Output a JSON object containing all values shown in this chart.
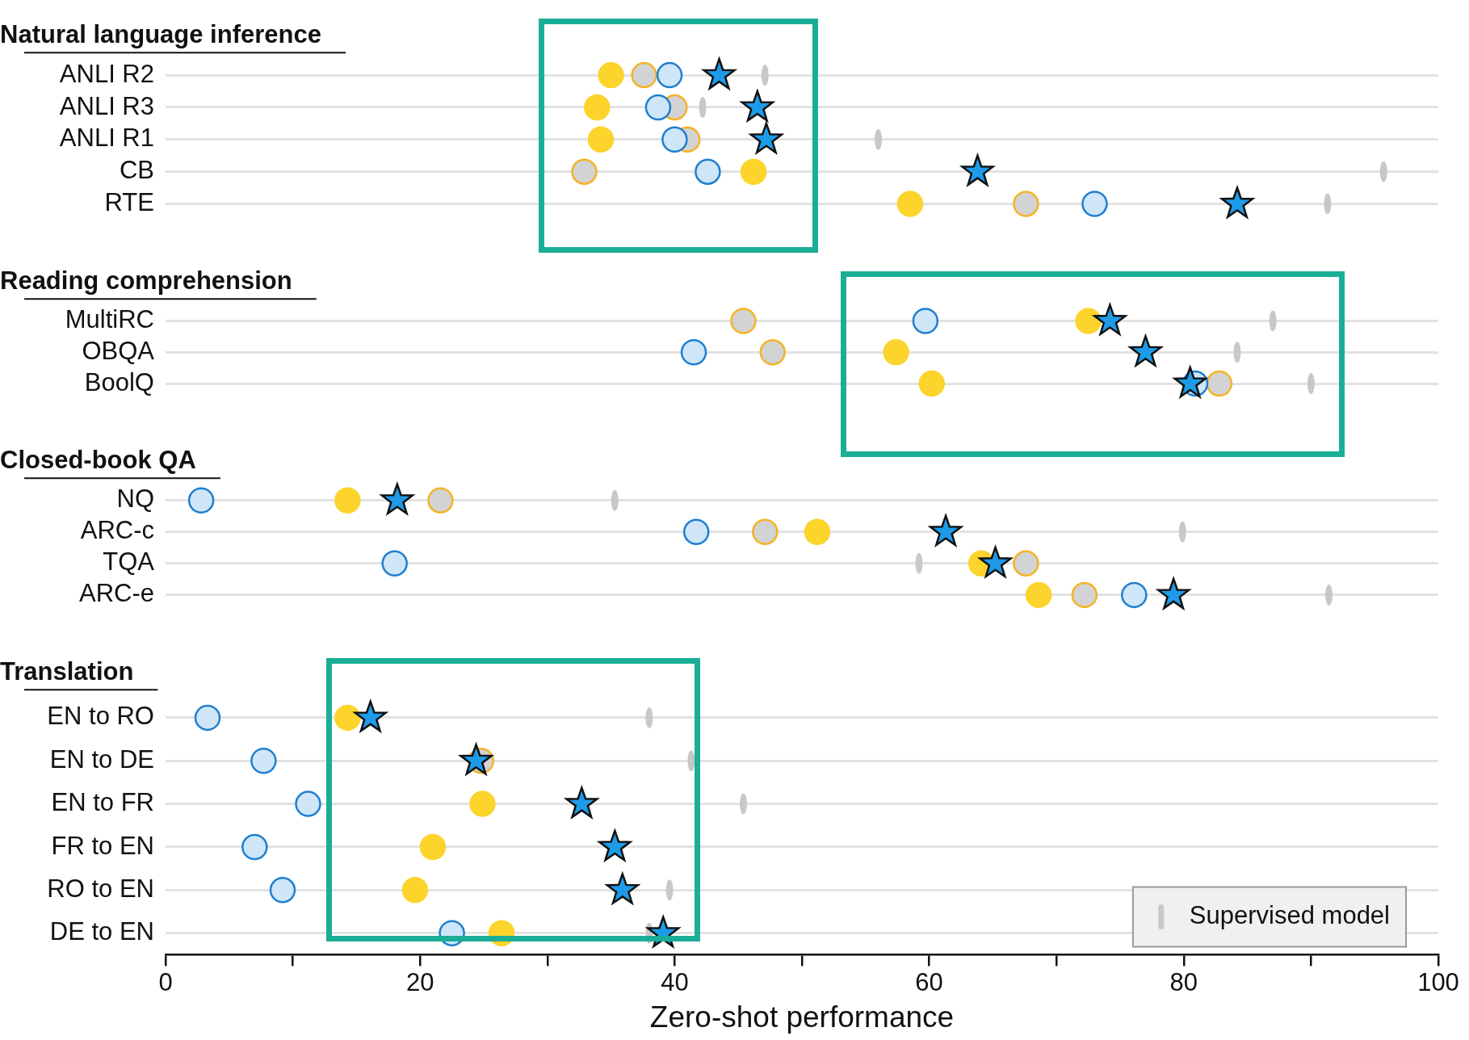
{
  "chart_data": [
    {
      "type": "scatter",
      "title": "Natural language inference",
      "orientation": "horizontal",
      "categories": [
        "ANLI R2",
        "ANLI R3",
        "ANLI R1",
        "CB",
        "RTE"
      ],
      "xlim": [
        0,
        100
      ],
      "tick_labels": "y",
      "grid": "y",
      "series": [
        {
          "color": "#1e9be8",
          "marker": "star",
          "values": [
            43.5,
            46.5,
            47.2,
            63.8,
            84.2
          ]
        },
        {
          "color": "#cfe6f8",
          "marker": "circle",
          "values": [
            39.6,
            38.7,
            40.0,
            42.6,
            73.0
          ]
        },
        {
          "color": "#fcd42c",
          "marker": "circle",
          "values": [
            35.0,
            33.9,
            34.2,
            46.2,
            58.5
          ]
        },
        {
          "color": "#d3d3d3",
          "marker": "circle",
          "values": [
            37.6,
            40.0,
            41.0,
            32.9,
            67.6
          ]
        },
        {
          "color": "#c8c8c8",
          "values": [
            47.1,
            42.2,
            56.0,
            95.7,
            91.3
          ]
        }
      ]
    },
    {
      "type": "scatter",
      "title": "Reading comprehension",
      "orientation": "horizontal",
      "categories": [
        "MultiRC",
        "OBQA",
        "BoolQ"
      ],
      "xlim": [
        0,
        100
      ],
      "tick_labels": "y",
      "grid": "y",
      "series": [
        {
          "color": "#1e9be8",
          "marker": "star",
          "values": [
            74.2,
            77.0,
            80.5
          ]
        },
        {
          "color": "#cfe6f8",
          "marker": "circle",
          "values": [
            59.7,
            41.5,
            80.9
          ]
        },
        {
          "color": "#fcd42c",
          "marker": "circle",
          "values": [
            72.5,
            57.4,
            60.2
          ]
        },
        {
          "color": "#d3d3d3",
          "marker": "circle",
          "values": [
            45.4,
            47.7,
            82.8
          ]
        },
        {
          "color": "#c8c8c8",
          "values": [
            87.0,
            84.2,
            90.0
          ]
        }
      ]
    },
    {
      "type": "scatter",
      "title": "Closed-book QA",
      "orientation": "horizontal",
      "categories": [
        "NQ",
        "ARC-c",
        "TQA",
        "ARC-e"
      ],
      "xlim": [
        0,
        100
      ],
      "tick_labels": "y",
      "grid": "y",
      "series": [
        {
          "color": "#1e9be8",
          "marker": "star",
          "values": [
            18.2,
            61.3,
            65.2,
            79.2
          ]
        },
        {
          "color": "#cfe6f8",
          "marker": "circle",
          "values": [
            2.8,
            41.7,
            18.0,
            76.1
          ]
        },
        {
          "color": "#fcd42c",
          "marker": "circle",
          "values": [
            14.3,
            51.2,
            64.1,
            68.6
          ]
        },
        {
          "color": "#d3d3d3",
          "marker": "circle",
          "values": [
            21.6,
            47.1,
            67.6,
            72.2
          ]
        },
        {
          "color": "#c8c8c8",
          "values": [
            35.3,
            79.9,
            59.2,
            91.4
          ]
        }
      ]
    },
    {
      "type": "scatter",
      "title": "Translation",
      "orientation": "horizontal",
      "categories": [
        "EN to RO",
        "EN to DE",
        "EN to FR",
        "FR to EN",
        "RO to EN",
        "DE to EN"
      ],
      "xlim": [
        0,
        100
      ],
      "xticks": [
        0,
        {
          "value": 10,
          "label": null
        },
        20,
        {
          "value": 30,
          "label": null
        },
        40,
        {
          "value": 50,
          "label": null
        },
        60,
        {
          "value": 70,
          "label": null
        },
        80,
        {
          "value": 90,
          "label": null
        },
        100
      ],
      "xlabel": "Zero-shot performance",
      "grid": "y",
      "legend": "bottom right",
      "series": [
        {
          "color": "#1e9be8",
          "marker": "star",
          "values": [
            16.1,
            24.4,
            32.7,
            35.3,
            35.9,
            39.1
          ]
        },
        {
          "color": "#cfe6f8",
          "marker": "circle",
          "values": [
            3.3,
            7.7,
            11.2,
            7.0,
            9.2,
            22.5
          ]
        },
        {
          "color": "#fcd42c",
          "marker": "circle",
          "values": [
            14.3,
            null,
            24.9,
            21.0,
            19.6,
            26.4
          ]
        },
        {
          "color": "#d3d3d3",
          "marker": "circle",
          "values": [
            null,
            24.8,
            null,
            null,
            null,
            null
          ]
        },
        {
          "name": "Supervised model",
          "color": "#c8c8c8",
          "values": [
            38.0,
            41.3,
            45.4,
            null,
            39.6,
            38.0
          ]
        }
      ]
    }
  ]
}
